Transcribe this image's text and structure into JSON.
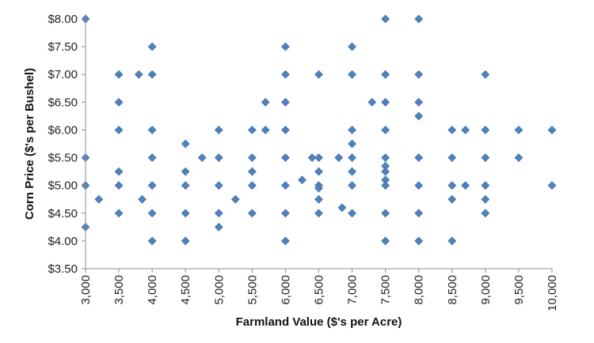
{
  "chart_data": {
    "type": "scatter",
    "title": "",
    "xlabel": "Farmland Value ($'s per Acre)",
    "ylabel": "Corn Price ($'s per Bushel)",
    "xlim": [
      3000,
      10000
    ],
    "ylim": [
      3.5,
      8.0
    ],
    "x_ticks": [
      "3,000",
      "3,500",
      "4,000",
      "4,500",
      "5,000",
      "5,500",
      "6,000",
      "6,500",
      "7,000",
      "7,500",
      "8,000",
      "8,500",
      "9,000",
      "9,500",
      "10,000"
    ],
    "y_ticks": [
      "$3.50",
      "$4.00",
      "$4.50",
      "$5.00",
      "$5.50",
      "$6.00",
      "$6.50",
      "$7.00",
      "$7.50",
      "$8.00"
    ],
    "grid": false,
    "legend": "none",
    "marker_color": "#4f81bd",
    "series": [
      {
        "marker": "diamond",
        "points": [
          [
            3000,
            8.0
          ],
          [
            3000,
            5.5
          ],
          [
            3000,
            5.0
          ],
          [
            3000,
            4.25
          ],
          [
            3200,
            4.75
          ],
          [
            3500,
            7.0
          ],
          [
            3500,
            6.5
          ],
          [
            3500,
            6.0
          ],
          [
            3500,
            5.25
          ],
          [
            3500,
            5.0
          ],
          [
            3500,
            4.5
          ],
          [
            3800,
            7.0
          ],
          [
            3850,
            4.75
          ],
          [
            4000,
            7.5
          ],
          [
            4000,
            7.0
          ],
          [
            4000,
            6.0
          ],
          [
            4000,
            5.5
          ],
          [
            4000,
            5.0
          ],
          [
            4000,
            4.5
          ],
          [
            4000,
            4.0
          ],
          [
            4500,
            5.75
          ],
          [
            4500,
            5.25
          ],
          [
            4500,
            5.0
          ],
          [
            4500,
            4.5
          ],
          [
            4500,
            4.0
          ],
          [
            4750,
            5.5
          ],
          [
            5000,
            6.0
          ],
          [
            5000,
            5.5
          ],
          [
            5000,
            5.0
          ],
          [
            5000,
            4.5
          ],
          [
            5000,
            4.25
          ],
          [
            5250,
            4.75
          ],
          [
            5500,
            6.0
          ],
          [
            5500,
            5.5
          ],
          [
            5500,
            5.25
          ],
          [
            5500,
            5.0
          ],
          [
            5500,
            4.5
          ],
          [
            5700,
            6.5
          ],
          [
            5700,
            6.0
          ],
          [
            6000,
            7.5
          ],
          [
            6000,
            7.0
          ],
          [
            6000,
            6.5
          ],
          [
            6000,
            6.0
          ],
          [
            6000,
            5.5
          ],
          [
            6000,
            5.0
          ],
          [
            6000,
            4.5
          ],
          [
            6000,
            4.0
          ],
          [
            6250,
            5.1
          ],
          [
            6400,
            5.5
          ],
          [
            6500,
            7.0
          ],
          [
            6500,
            5.5
          ],
          [
            6500,
            5.25
          ],
          [
            6500,
            5.0
          ],
          [
            6500,
            4.95
          ],
          [
            6500,
            4.75
          ],
          [
            6500,
            4.5
          ],
          [
            6800,
            5.5
          ],
          [
            6850,
            4.6
          ],
          [
            7000,
            7.5
          ],
          [
            7000,
            7.0
          ],
          [
            7000,
            6.0
          ],
          [
            7000,
            5.75
          ],
          [
            7000,
            5.5
          ],
          [
            7000,
            5.25
          ],
          [
            7000,
            5.0
          ],
          [
            7000,
            4.5
          ],
          [
            7300,
            6.5
          ],
          [
            7500,
            8.0
          ],
          [
            7500,
            7.0
          ],
          [
            7500,
            6.5
          ],
          [
            7500,
            6.0
          ],
          [
            7500,
            5.5
          ],
          [
            7500,
            5.35
          ],
          [
            7500,
            5.25
          ],
          [
            7500,
            5.1
          ],
          [
            7500,
            5.0
          ],
          [
            7500,
            4.5
          ],
          [
            7500,
            4.0
          ],
          [
            8000,
            8.0
          ],
          [
            8000,
            7.0
          ],
          [
            8000,
            6.5
          ],
          [
            8000,
            6.25
          ],
          [
            8000,
            5.5
          ],
          [
            8000,
            5.0
          ],
          [
            8000,
            4.5
          ],
          [
            8000,
            4.0
          ],
          [
            8500,
            6.0
          ],
          [
            8500,
            5.5
          ],
          [
            8500,
            5.0
          ],
          [
            8500,
            4.75
          ],
          [
            8500,
            4.0
          ],
          [
            8700,
            6.0
          ],
          [
            8700,
            5.0
          ],
          [
            9000,
            7.0
          ],
          [
            9000,
            6.0
          ],
          [
            9000,
            5.5
          ],
          [
            9000,
            5.0
          ],
          [
            9000,
            4.75
          ],
          [
            9000,
            4.5
          ],
          [
            9500,
            6.0
          ],
          [
            9500,
            5.5
          ],
          [
            10000,
            6.0
          ],
          [
            10000,
            5.0
          ]
        ]
      }
    ]
  }
}
